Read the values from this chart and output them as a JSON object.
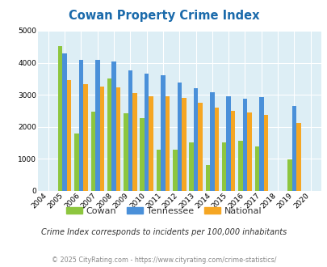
{
  "title": "Cowan Property Crime Index",
  "years": [
    2004,
    2005,
    2006,
    2007,
    2008,
    2009,
    2010,
    2011,
    2012,
    2013,
    2014,
    2015,
    2016,
    2017,
    2018,
    2019,
    2020
  ],
  "cowan": [
    0,
    4530,
    1780,
    2470,
    3520,
    2430,
    2280,
    1290,
    1280,
    1510,
    800,
    1520,
    1560,
    1400,
    0,
    990,
    0
  ],
  "tennessee": [
    0,
    4300,
    4100,
    4090,
    4040,
    3760,
    3660,
    3600,
    3380,
    3200,
    3080,
    2960,
    2890,
    2940,
    0,
    2640,
    0
  ],
  "national": [
    0,
    3450,
    3340,
    3260,
    3220,
    3050,
    2960,
    2950,
    2900,
    2740,
    2600,
    2490,
    2460,
    2370,
    0,
    2130,
    0
  ],
  "cowan_color": "#8dc63f",
  "tennessee_color": "#4a90d9",
  "national_color": "#f5a623",
  "plot_bg_color": "#ddeef5",
  "ylim": [
    0,
    5000
  ],
  "yticks": [
    0,
    1000,
    2000,
    3000,
    4000,
    5000
  ],
  "subtitle": "Crime Index corresponds to incidents per 100,000 inhabitants",
  "footer": "© 2025 CityRating.com - https://www.cityrating.com/crime-statistics/",
  "legend_labels": [
    "Cowan",
    "Tennessee",
    "National"
  ]
}
